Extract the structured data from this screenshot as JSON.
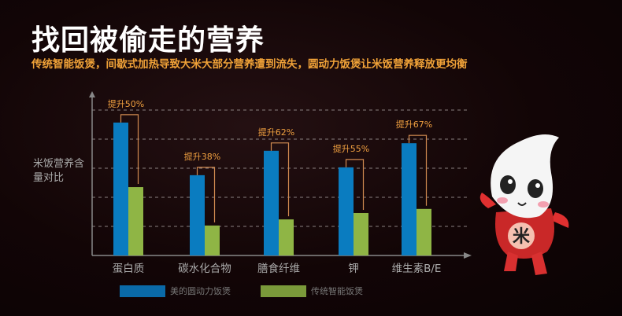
{
  "header": {
    "title": "找回被偷走的营养",
    "subtitle": "传统智能饭煲，间歇式加热导致大米大部分营养遭到流失，圆动力饭煲让米饭营养释放更均衡"
  },
  "chart_data": {
    "type": "bar",
    "title": "",
    "ylabel": "米饭营养含量对比",
    "xlabel": "",
    "categories": [
      "蛋白质",
      "碳水化合物",
      "膳食纤维",
      "钾",
      "维生素B/E"
    ],
    "series": [
      {
        "name": "美的圆动力饭煲",
        "color": "#0a7cc0",
        "values": [
          4.57,
          2.76,
          3.6,
          3.03,
          3.86
        ]
      },
      {
        "name": "传统智能饭煲",
        "color": "#8fb545",
        "values": [
          2.35,
          1.03,
          1.24,
          1.46,
          1.6
        ]
      }
    ],
    "annotations": [
      "提升50%",
      "提升38%",
      "提升62%",
      "提升55%",
      "提升67%"
    ],
    "ylim": [
      0,
      5
    ],
    "grid": true,
    "legend": "bottom"
  },
  "mascot": {
    "badge": "米"
  }
}
